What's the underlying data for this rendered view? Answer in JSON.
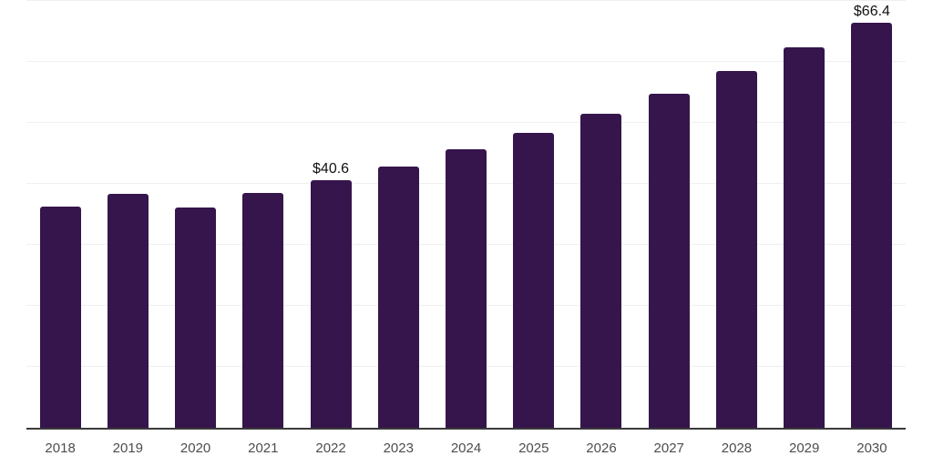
{
  "chart_data": {
    "type": "bar",
    "title": "",
    "xlabel": "",
    "ylabel": "",
    "categories": [
      "2018",
      "2019",
      "2020",
      "2021",
      "2022",
      "2023",
      "2024",
      "2025",
      "2026",
      "2027",
      "2028",
      "2029",
      "2030"
    ],
    "values": [
      36.3,
      38.3,
      36.1,
      38.5,
      40.6,
      42.9,
      45.7,
      48.4,
      51.5,
      54.8,
      58.5,
      62.4,
      66.4
    ],
    "data_labels": {
      "2022": "$40.6",
      "2030": "$66.4"
    },
    "ylim": [
      0,
      70
    ],
    "gridline_step": 10,
    "grid": true,
    "y_tick_labels_visible": false,
    "legend_position": "none",
    "bar_color": "#35154B",
    "grid_color": "#efefef",
    "axis_line_color": "#3a3a3a",
    "tick_label_color": "#4d4d4d",
    "data_label_color": "#111111",
    "background_color": "#ffffff"
  }
}
